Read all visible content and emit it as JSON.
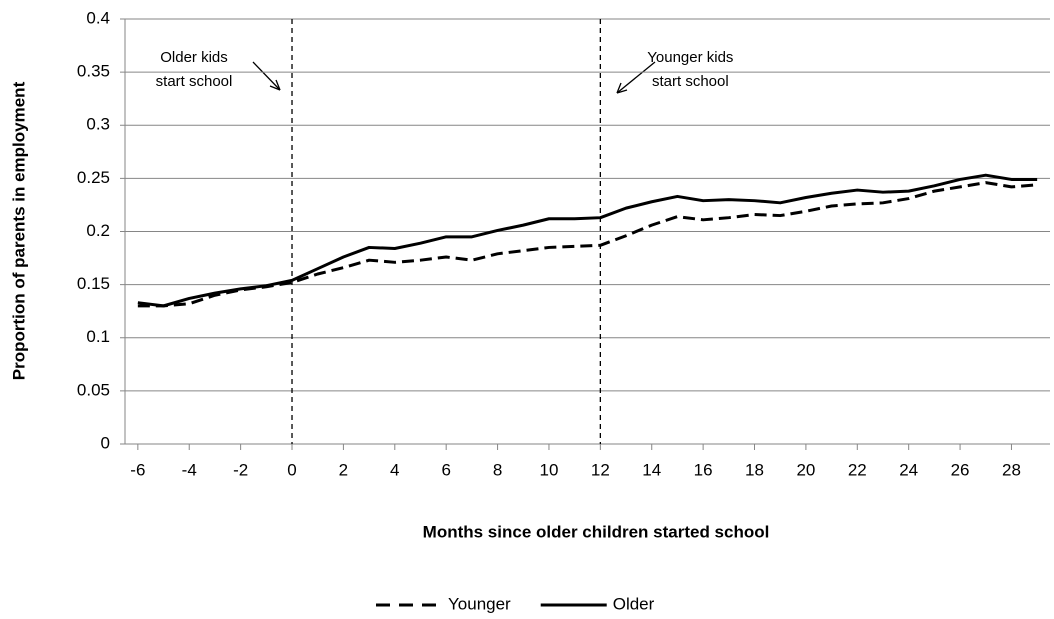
{
  "chart_data": {
    "type": "line",
    "x_label": "Months since older children started school",
    "y_label": "Proportion of parents in employment",
    "x": [
      -6,
      -5,
      -4,
      -3,
      -2,
      -1,
      0,
      1,
      2,
      3,
      4,
      5,
      6,
      7,
      8,
      9,
      10,
      11,
      12,
      13,
      14,
      15,
      16,
      17,
      18,
      19,
      20,
      21,
      22,
      23,
      24,
      25,
      26,
      27,
      28,
      29
    ],
    "series": [
      {
        "name": "Younger",
        "color": "#000000",
        "dashed": true,
        "values": [
          0.13,
          0.13,
          0.132,
          0.14,
          0.145,
          0.148,
          0.152,
          0.16,
          0.166,
          0.173,
          0.171,
          0.173,
          0.176,
          0.173,
          0.179,
          0.182,
          0.185,
          0.186,
          0.187,
          0.196,
          0.206,
          0.214,
          0.211,
          0.213,
          0.216,
          0.215,
          0.219,
          0.224,
          0.226,
          0.227,
          0.231,
          0.238,
          0.242,
          0.246,
          0.242,
          0.244
        ]
      },
      {
        "name": "Older",
        "color": "#000000",
        "dashed": false,
        "values": [
          0.133,
          0.13,
          0.137,
          0.142,
          0.146,
          0.149,
          0.154,
          0.165,
          0.176,
          0.185,
          0.184,
          0.189,
          0.195,
          0.195,
          0.201,
          0.206,
          0.212,
          0.212,
          0.213,
          0.222,
          0.228,
          0.233,
          0.229,
          0.23,
          0.229,
          0.227,
          0.232,
          0.236,
          0.239,
          0.237,
          0.238,
          0.243,
          0.249,
          0.253,
          0.249,
          0.249
        ]
      }
    ],
    "xlim": [
      -6.5,
      29.5
    ],
    "xticks": [
      -6,
      -4,
      -2,
      0,
      2,
      4,
      6,
      8,
      10,
      12,
      14,
      16,
      18,
      20,
      22,
      24,
      26,
      28
    ],
    "ylim": [
      0,
      0.4
    ],
    "yticks": [
      0,
      0.05,
      0.1,
      0.15,
      0.2,
      0.25,
      0.3,
      0.35,
      0.4
    ],
    "grid": true,
    "legend": "bottom",
    "annotations": [
      {
        "x": 0,
        "lines": [
          "Older kids",
          "start school"
        ]
      },
      {
        "x": 12,
        "lines": [
          "Younger kids",
          "start school"
        ]
      }
    ]
  }
}
